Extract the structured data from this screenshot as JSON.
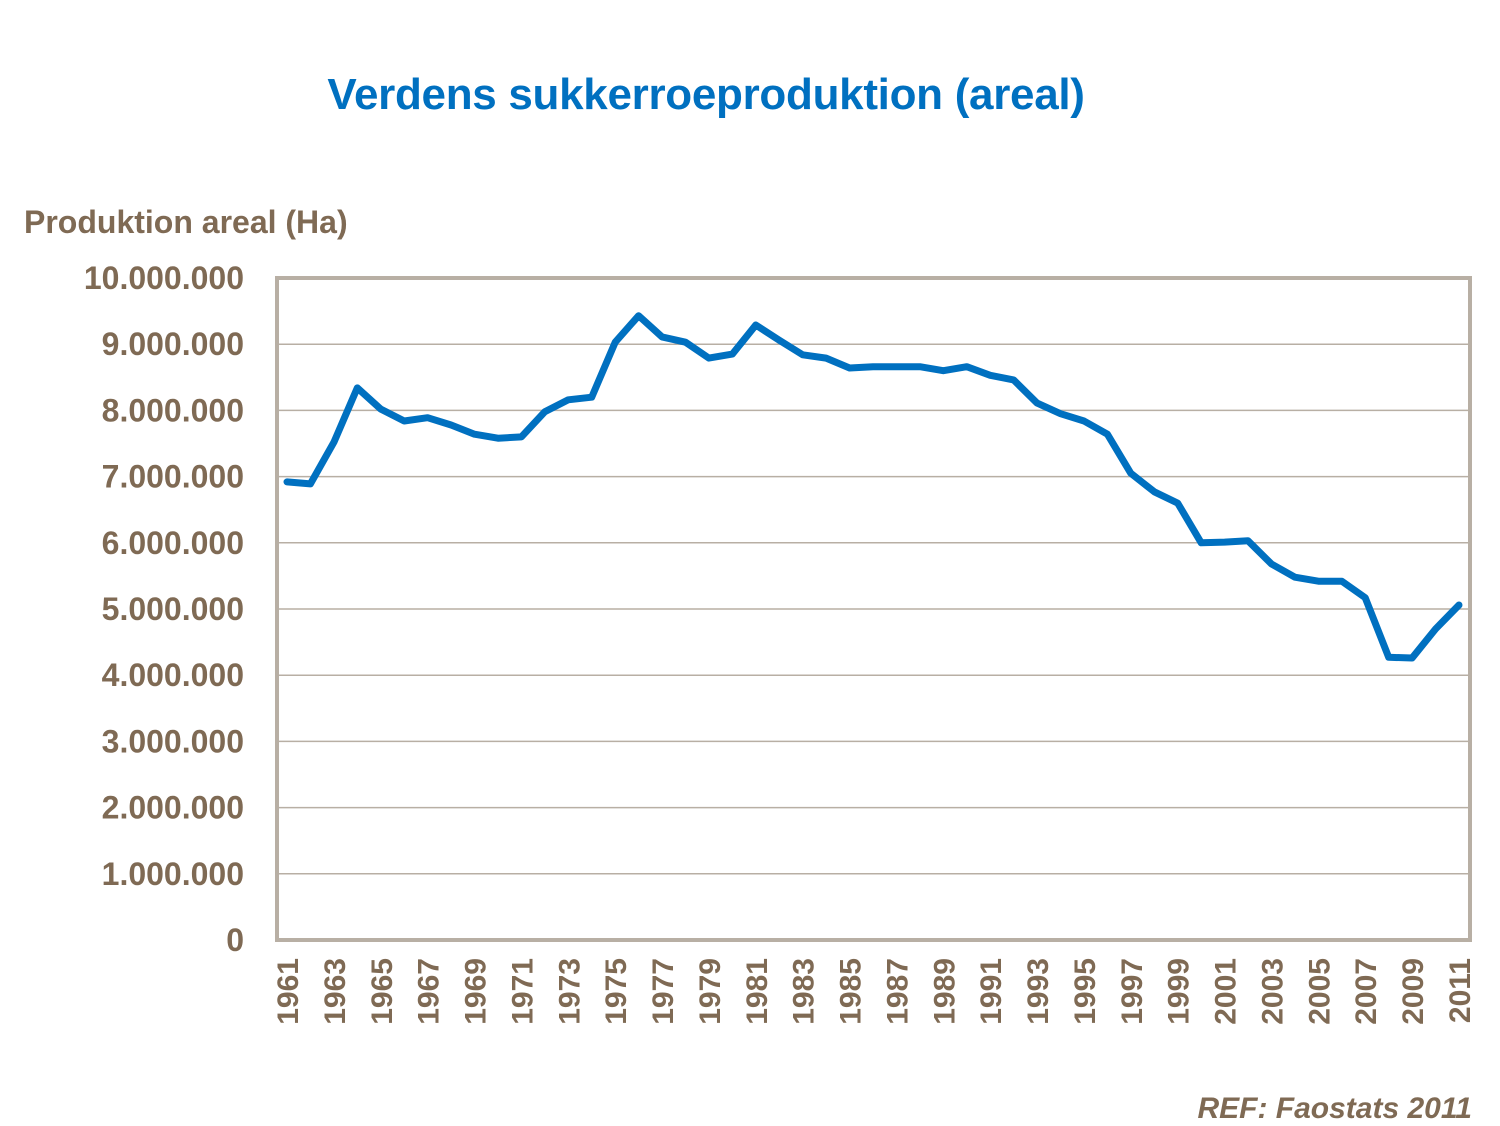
{
  "chart_data": {
    "type": "line",
    "title": "Verdens sukkerroeproduktion (areal)",
    "ylabel": "Produktion areal (Ha)",
    "xlabel": "",
    "source": "REF: Faostats 2011",
    "ylim": [
      0,
      10000000
    ],
    "yticks": [
      0,
      1000000,
      2000000,
      3000000,
      4000000,
      5000000,
      6000000,
      7000000,
      8000000,
      9000000,
      10000000
    ],
    "ytick_labels": [
      "0",
      "1.000.000",
      "2.000.000",
      "3.000.000",
      "4.000.000",
      "5.000.000",
      "6.000.000",
      "7.000.000",
      "8.000.000",
      "9.000.000",
      "10.000.000"
    ],
    "xtick_labels": [
      "1961",
      "1963",
      "1965",
      "1967",
      "1969",
      "1971",
      "1973",
      "1975",
      "1977",
      "1979",
      "1981",
      "1983",
      "1985",
      "1987",
      "1989",
      "1991",
      "1993",
      "1995",
      "1997",
      "1999",
      "2001",
      "2003",
      "2005",
      "2007",
      "2009",
      "2011"
    ],
    "grid": true,
    "series": [
      {
        "name": "Areal",
        "color": "#0070C0",
        "x": [
          1961,
          1962,
          1963,
          1964,
          1965,
          1966,
          1967,
          1968,
          1969,
          1970,
          1971,
          1972,
          1973,
          1974,
          1975,
          1976,
          1977,
          1978,
          1979,
          1980,
          1981,
          1982,
          1983,
          1984,
          1985,
          1986,
          1987,
          1988,
          1989,
          1990,
          1991,
          1992,
          1993,
          1994,
          1995,
          1996,
          1997,
          1998,
          1999,
          2000,
          2001,
          2002,
          2003,
          2004,
          2005,
          2006,
          2007,
          2008,
          2009,
          2010,
          2011
        ],
        "values": [
          6920000,
          6890000,
          7520000,
          8340000,
          8020000,
          7840000,
          7890000,
          7780000,
          7640000,
          7580000,
          7600000,
          7980000,
          8160000,
          8200000,
          9030000,
          9430000,
          9110000,
          9030000,
          8790000,
          8850000,
          9290000,
          9060000,
          8840000,
          8790000,
          8640000,
          8660000,
          8660000,
          8660000,
          8600000,
          8660000,
          8530000,
          8460000,
          8110000,
          7950000,
          7840000,
          7640000,
          7050000,
          6770000,
          6600000,
          6000000,
          6010000,
          6030000,
          5680000,
          5480000,
          5420000,
          5420000,
          5170000,
          4270000,
          4260000,
          4700000,
          5060000
        ]
      }
    ]
  },
  "colors": {
    "title": "#0070C0",
    "text": "#7F6A54",
    "grid": "#B8AFA4",
    "line": "#0070C0"
  }
}
